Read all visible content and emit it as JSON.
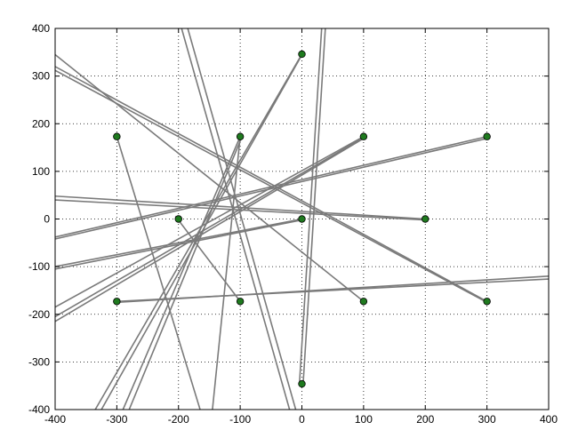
{
  "chart_data": {
    "type": "scatter",
    "title": "",
    "xlabel": "",
    "ylabel": "",
    "xlim": [
      -400,
      400
    ],
    "ylim": [
      -400,
      400
    ],
    "xticks": [
      -400,
      -300,
      -200,
      -100,
      0,
      100,
      200,
      300,
      400
    ],
    "yticks": [
      -400,
      -300,
      -200,
      -100,
      0,
      100,
      200,
      300,
      400
    ],
    "grid": true,
    "points": [
      {
        "x": 0,
        "y": 346
      },
      {
        "x": -300,
        "y": 173
      },
      {
        "x": -100,
        "y": 173
      },
      {
        "x": 100,
        "y": 173
      },
      {
        "x": 300,
        "y": 173
      },
      {
        "x": -200,
        "y": 0
      },
      {
        "x": 0,
        "y": 0
      },
      {
        "x": 200,
        "y": 0
      },
      {
        "x": -300,
        "y": -173
      },
      {
        "x": -100,
        "y": -173
      },
      {
        "x": 100,
        "y": -173
      },
      {
        "x": 300,
        "y": -173
      },
      {
        "x": 0,
        "y": -346
      }
    ],
    "lines": [
      {
        "x1": 32,
        "y1": 400,
        "x2": -4,
        "y2": -346
      },
      {
        "x1": 38,
        "y1": 400,
        "x2": 2,
        "y2": -346
      },
      {
        "x1": -185,
        "y1": 400,
        "x2": -10,
        "y2": -400
      },
      {
        "x1": -195,
        "y1": 400,
        "x2": -20,
        "y2": -400
      },
      {
        "x1": -300,
        "y1": 173,
        "x2": -165,
        "y2": -400
      },
      {
        "x1": -100,
        "y1": 173,
        "x2": -145,
        "y2": -400
      },
      {
        "x1": -205,
        "y1": 6,
        "x2": -100,
        "y2": -173
      },
      {
        "x1": -400,
        "y1": 345,
        "x2": 100,
        "y2": -173
      },
      {
        "x1": -400,
        "y1": 320,
        "x2": 300,
        "y2": -173
      },
      {
        "x1": -400,
        "y1": 312,
        "x2": 300,
        "y2": -175
      },
      {
        "x1": -400,
        "y1": 48,
        "x2": 200,
        "y2": 0
      },
      {
        "x1": -400,
        "y1": 40,
        "x2": 200,
        "y2": -2
      },
      {
        "x1": -400,
        "y1": -38,
        "x2": 300,
        "y2": 173
      },
      {
        "x1": -400,
        "y1": -42,
        "x2": 300,
        "y2": 169
      },
      {
        "x1": -400,
        "y1": -100,
        "x2": 0,
        "y2": 0
      },
      {
        "x1": -400,
        "y1": -105,
        "x2": 0,
        "y2": -2
      },
      {
        "x1": -300,
        "y1": -175,
        "x2": 400,
        "y2": -120
      },
      {
        "x1": -300,
        "y1": -173,
        "x2": 400,
        "y2": -126
      },
      {
        "x1": -400,
        "y1": -185,
        "x2": 100,
        "y2": 173
      },
      {
        "x1": -400,
        "y1": -205,
        "x2": 100,
        "y2": 171
      },
      {
        "x1": -400,
        "y1": -215,
        "x2": 100,
        "y2": 169
      },
      {
        "x1": -335,
        "y1": -400,
        "x2": 0,
        "y2": 346
      },
      {
        "x1": -325,
        "y1": -400,
        "x2": -2,
        "y2": 340
      },
      {
        "x1": -290,
        "y1": -400,
        "x2": -100,
        "y2": 173
      },
      {
        "x1": -280,
        "y1": -400,
        "x2": -98,
        "y2": 170
      }
    ]
  }
}
